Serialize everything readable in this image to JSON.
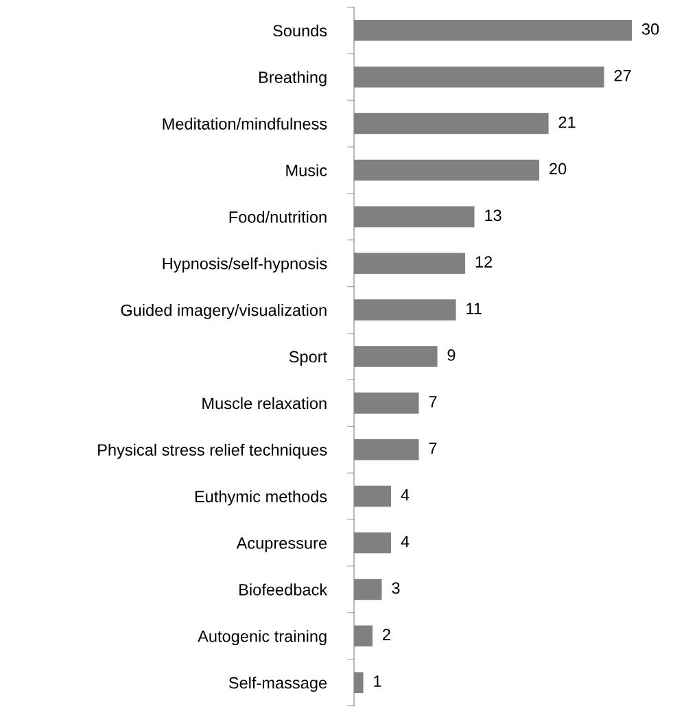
{
  "chart_data": {
    "type": "bar",
    "orientation": "horizontal",
    "categories": [
      "Sounds",
      "Breathing",
      "Meditation/mindfulness",
      "Music",
      "Food/nutrition",
      "Hypnosis/self-hypnosis",
      "Guided imagery/visualization",
      "Sport",
      "Muscle relaxation",
      "Physical stress relief techniques",
      "Euthymic methods",
      "Acupressure",
      "Biofeedback",
      "Autogenic training",
      "Self-massage"
    ],
    "values": [
      30,
      27,
      21,
      20,
      13,
      12,
      11,
      9,
      7,
      7,
      4,
      4,
      3,
      2,
      1
    ],
    "color": "#808080",
    "data_labels": true,
    "grid": false,
    "legend": false
  }
}
